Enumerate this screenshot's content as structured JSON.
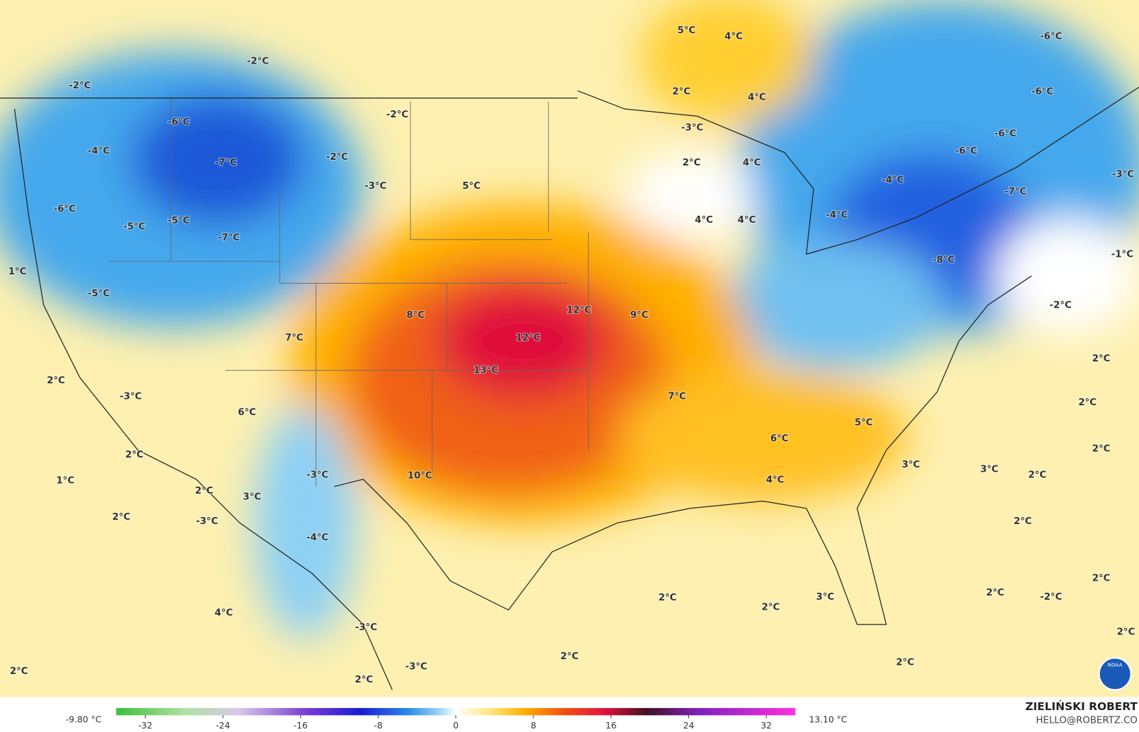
{
  "labels": [
    "5°C",
    "4°C",
    "-6°C",
    "-2°C",
    "-2°C",
    "2°C",
    "4°C",
    "-6°C",
    "-2°C",
    "-6°C",
    "-3°C",
    "-6°C",
    "-4°C",
    "-2°C",
    "-6°C",
    "2°C",
    "4°C",
    "-7°C",
    "-4°C",
    "-3°C",
    "5°C",
    "-3°C",
    "-7°C",
    "-6°C",
    "-4°C",
    "4°C",
    "4°C",
    "-5°C",
    "-5°C",
    "-7°C",
    "-8°C",
    "-1°C",
    "1°C",
    "-5°C",
    "-2°C",
    "12°C",
    "8°C",
    "9°C",
    "12°C",
    "7°C",
    "2°C",
    "13°C",
    "2°C",
    "-3°C",
    "7°C",
    "2°C",
    "6°C",
    "5°C",
    "6°C",
    "2°C",
    "2°C",
    "3°C",
    "3°C",
    "2°C",
    "-3°C",
    "10°C",
    "1°C",
    "4°C",
    "2°C",
    "3°C",
    "2°C",
    "-3°C",
    "2°C",
    "-4°C",
    "2°C",
    "2°C",
    "-2°C",
    "2°C",
    "3°C",
    "2°C",
    "4°C",
    "-3°C",
    "2°C",
    "2°C",
    "-3°C",
    "2°C",
    "2°C",
    "2°C"
  ],
  "colorbar": {
    "min_label": "-9.80 °C",
    "max_label": "13.10 °C",
    "range": [
      -35,
      35
    ],
    "ticks": [
      -32,
      -24,
      -16,
      -8,
      0,
      8,
      16,
      24,
      32
    ]
  },
  "credits": {
    "name": "ZIELIŃSKI ROBERT",
    "email": "HELLO@ROBERTZ.CO"
  },
  "logo": "NOAA"
}
